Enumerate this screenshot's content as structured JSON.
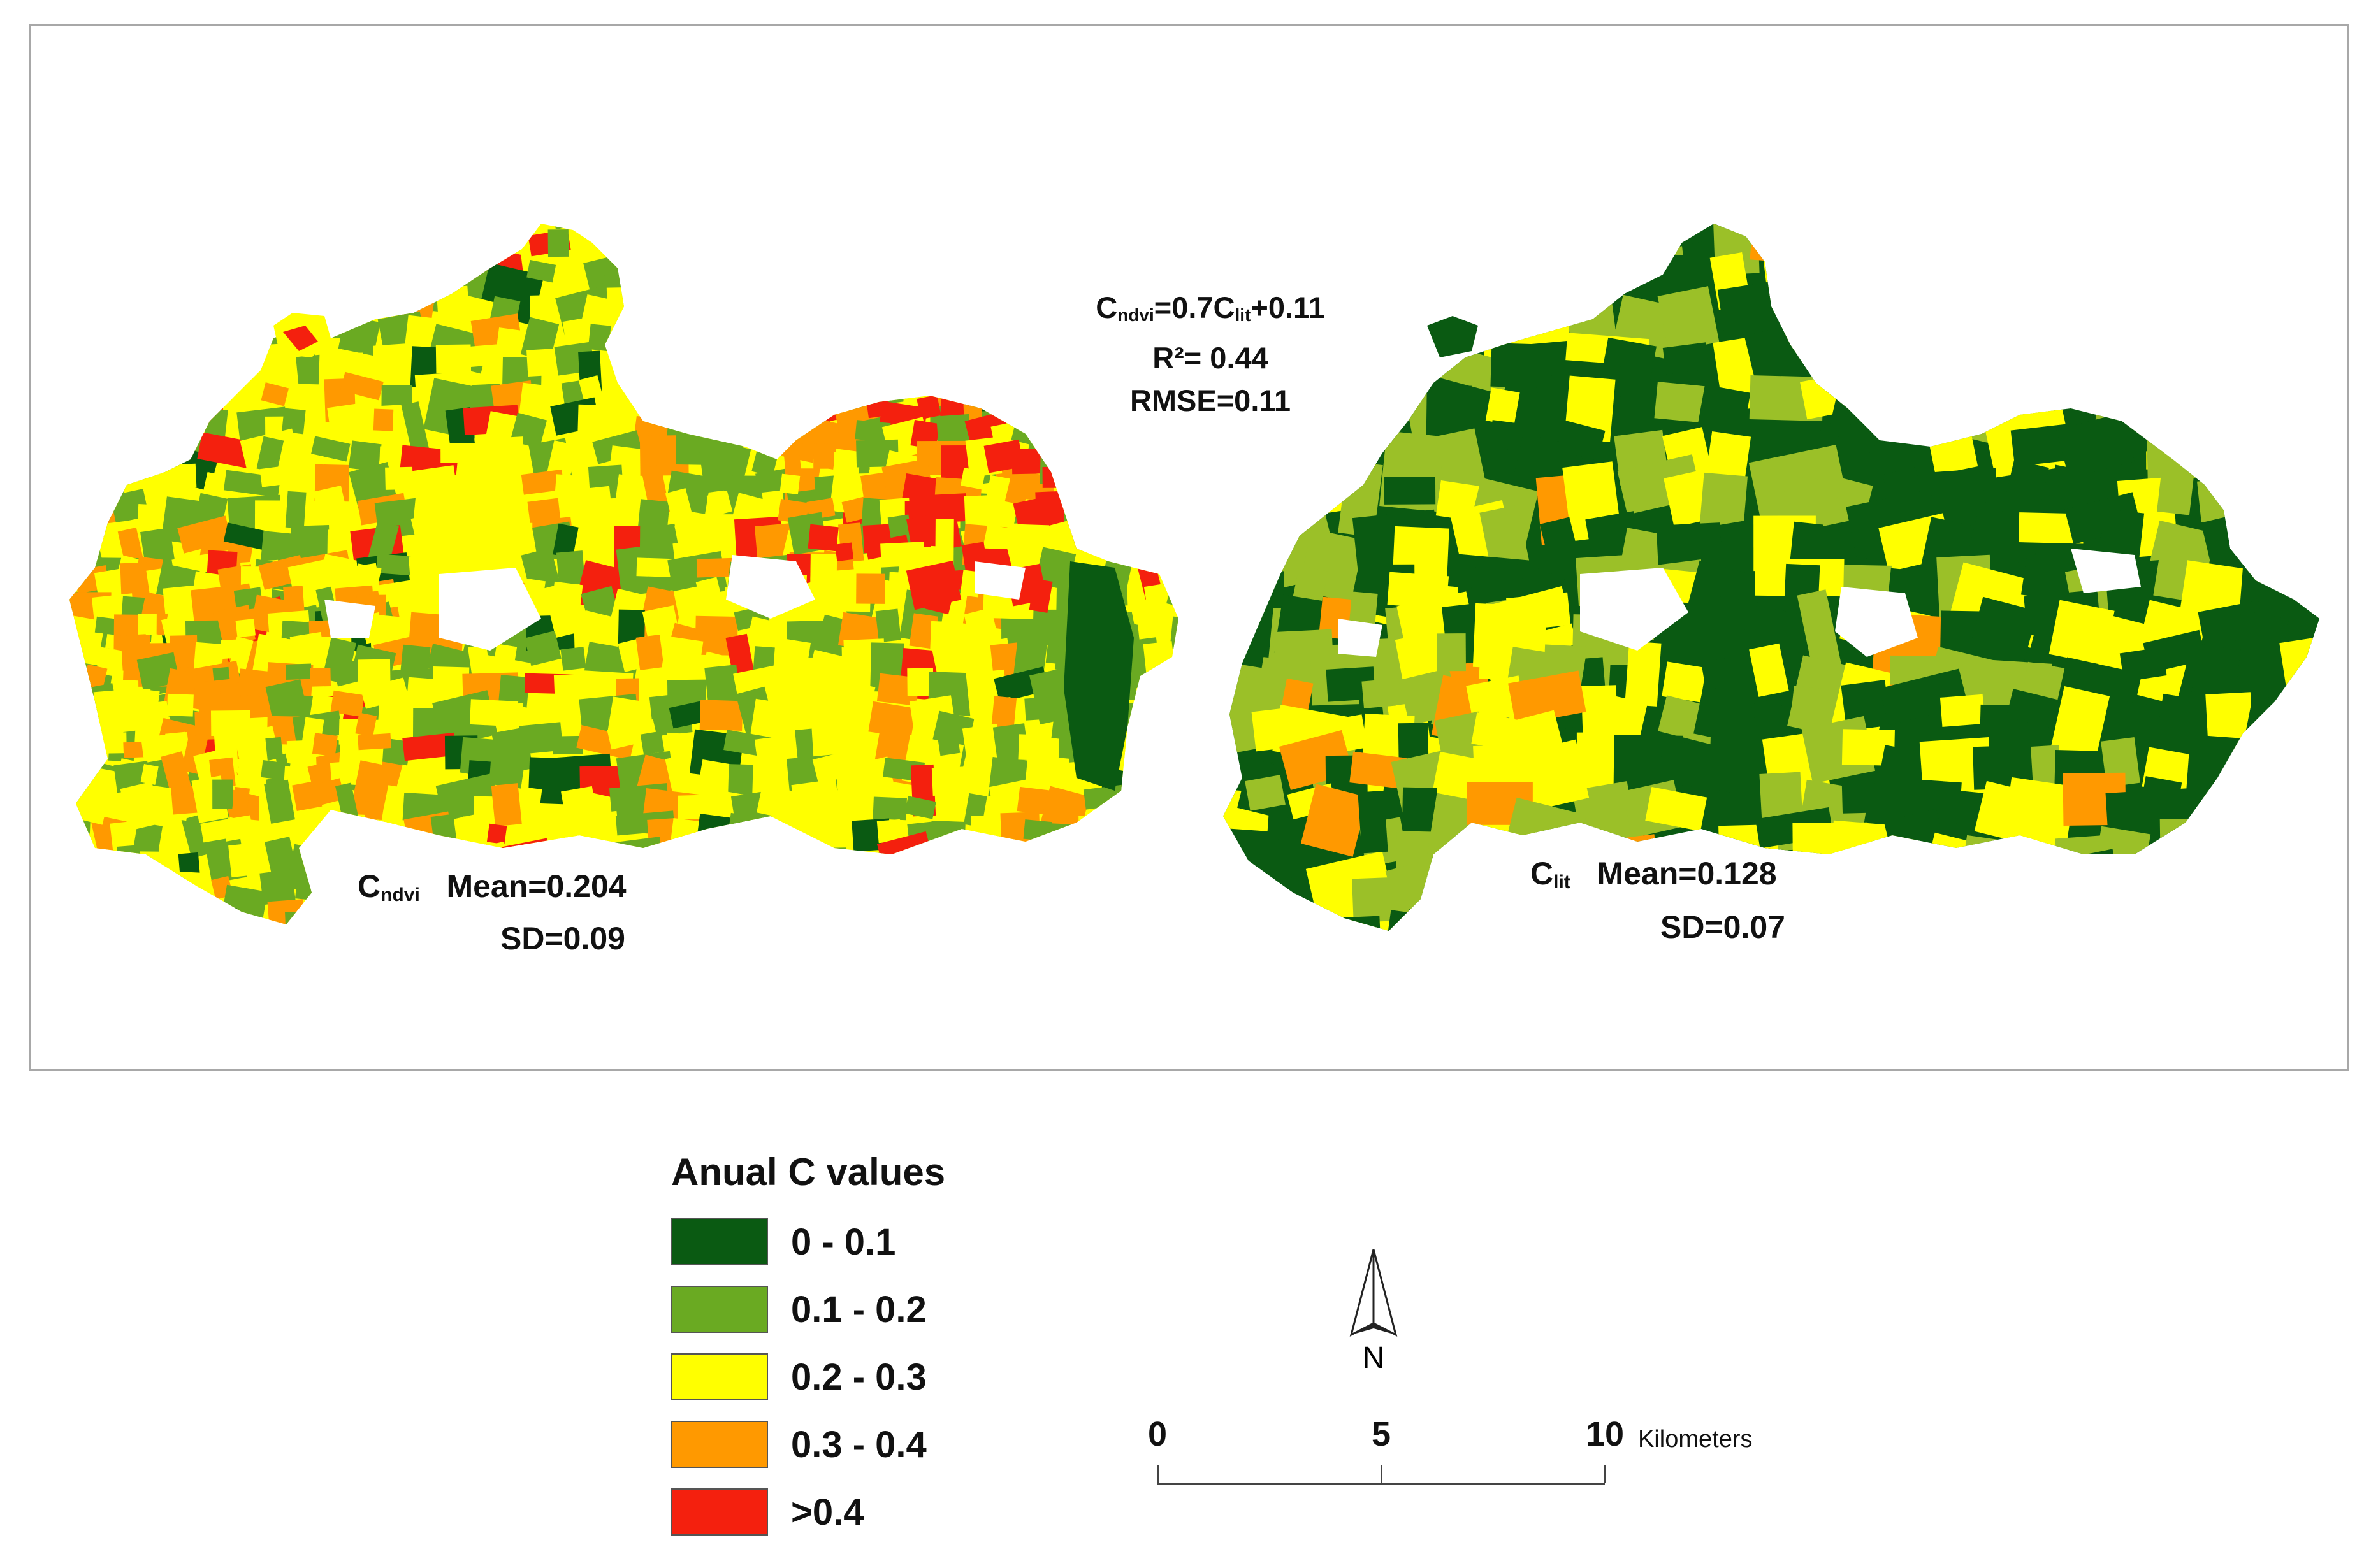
{
  "colors": {
    "c0": "#0a5a12",
    "c1": "#6aaa22",
    "c1b": "#9bc028",
    "c2": "#ffff00",
    "c3": "#ff9900",
    "c4": "#f4200e"
  },
  "left_map": {
    "symbol": "C",
    "symbol_sub": "ndvi",
    "mean": "Mean=0.204",
    "sd": "SD=0.09"
  },
  "right_map": {
    "symbol": "C",
    "symbol_sub": "lit",
    "mean": "Mean=0.128",
    "sd": "SD=0.07"
  },
  "regression": {
    "eq_a": "C",
    "eq_a_sub": "ndvi",
    "eq_b": "=0.7C",
    "eq_b_sub": "lit",
    "eq_c": "+0.11",
    "r2": "R²= 0.44",
    "rmse": "RMSE=0.11"
  },
  "legend": {
    "title": "Anual C values",
    "items": [
      {
        "label": "0 - 0.1",
        "color": "#0a5a12"
      },
      {
        "label": "0.1 - 0.2",
        "color": "#6aaa22"
      },
      {
        "label": "0.2 - 0.3",
        "color": "#ffff00"
      },
      {
        "label": "0.3 - 0.4",
        "color": "#ff9900"
      },
      {
        "label": ">0.4",
        "color": "#f4200e"
      }
    ]
  },
  "north_arrow": {
    "label": "N",
    "icon": "north-arrow-icon"
  },
  "scale_bar": {
    "ticks": [
      "0",
      "5",
      "10"
    ],
    "unit": "Kilometers"
  }
}
